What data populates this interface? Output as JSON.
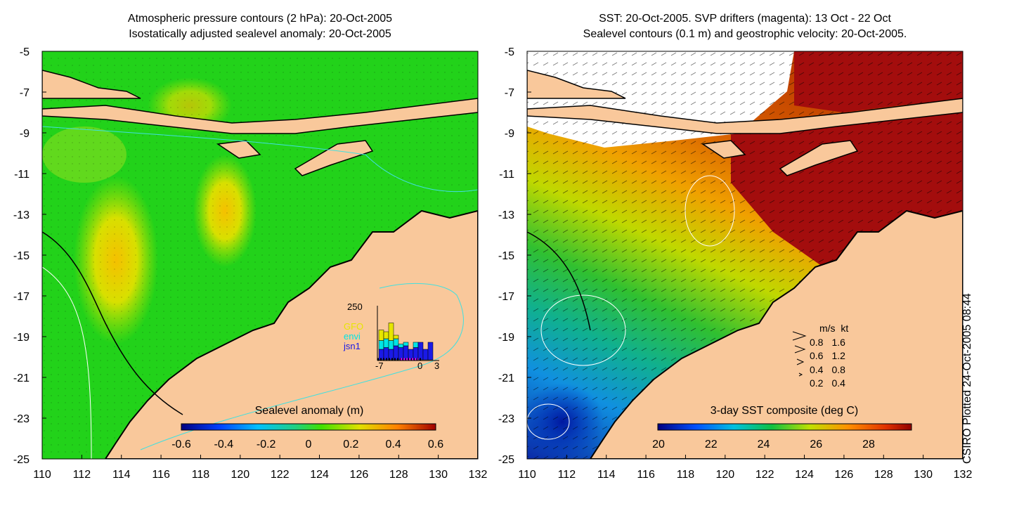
{
  "left_panel": {
    "title_line1": "Atmospheric pressure contours (2 hPa): 20-Oct-2005",
    "title_line2": "Isostatically adjusted sealevel anomaly: 20-Oct-2005",
    "colorbar_label": "Sealevel anomaly (m)",
    "colorbar_ticks": [
      "-0.6",
      "-0.4",
      "-0.2",
      "0",
      "0.2",
      "0.4",
      "0.6"
    ],
    "inset": {
      "ymax_label": "250",
      "x_ticks": [
        "-7",
        "0",
        "3"
      ],
      "legend": [
        {
          "name": "GFO",
          "color": "#e6e600"
        },
        {
          "name": "envi",
          "color": "#00e5e5"
        },
        {
          "name": "jsn1",
          "color": "#1a1ae6"
        }
      ],
      "bars": [
        {
          "day": -7,
          "jsn1": 60,
          "envi": 50,
          "gfo": 60
        },
        {
          "day": -6,
          "jsn1": 70,
          "envi": 50,
          "gfo": 40
        },
        {
          "day": -5,
          "jsn1": 60,
          "envi": 50,
          "gfo": 100
        },
        {
          "day": -4,
          "jsn1": 80,
          "envi": 40,
          "gfo": 20
        },
        {
          "day": -3,
          "jsn1": 70,
          "envi": 20,
          "gfo": 0
        },
        {
          "day": -2,
          "jsn1": 80,
          "envi": 20,
          "gfo": 0
        },
        {
          "day": -1,
          "jsn1": 60,
          "envi": 0,
          "gfo": 0
        },
        {
          "day": 0,
          "jsn1": 70,
          "envi": 30,
          "gfo": 0
        },
        {
          "day": 1,
          "jsn1": 100,
          "envi": 0,
          "gfo": 0
        },
        {
          "day": 2,
          "jsn1": 60,
          "envi": 0,
          "gfo": 0
        },
        {
          "day": 3,
          "jsn1": 100,
          "envi": 0,
          "gfo": 0
        }
      ]
    }
  },
  "right_panel": {
    "title_line1": "SST: 20-Oct-2005. SVP drifters (magenta): 13 Oct - 22 Oct",
    "title_line2": "Sealevel contours (0.1 m) and geostrophic velocity: 20-Oct-2005.",
    "colorbar_label": "3-day SST composite (deg C)",
    "colorbar_ticks": [
      "20",
      "22",
      "24",
      "26",
      "28"
    ],
    "velocity_key": {
      "header_ms": "m/s",
      "header_kt": "kt",
      "rows": [
        {
          "ms": "0.8",
          "kt": "1.6"
        },
        {
          "ms": "0.6",
          "kt": "1.2"
        },
        {
          "ms": "0.4",
          "kt": "0.8"
        },
        {
          "ms": "0.2",
          "kt": "0.4"
        }
      ]
    }
  },
  "axes": {
    "lat_ticks": [
      "-5",
      "-7",
      "-9",
      "-11",
      "-13",
      "-15",
      "-17",
      "-19",
      "-21",
      "-23",
      "-25"
    ],
    "lon_ticks": [
      "110",
      "112",
      "114",
      "116",
      "118",
      "120",
      "122",
      "124",
      "126",
      "128",
      "130",
      "132"
    ]
  },
  "footer": "CSIRO Plotted 24-Oct-2005 08:44",
  "colors": {
    "land": "#f9c89b",
    "sla_base": "#22d21a",
    "sst_cold": "#0a2aa8",
    "sst_warm": "#a30d0d"
  }
}
